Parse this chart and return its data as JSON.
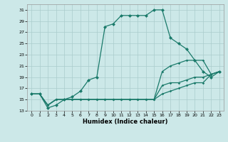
{
  "xlabel": "Humidex (Indice chaleur)",
  "bg_color": "#cce8e8",
  "grid_color": "#aacccc",
  "line_color": "#1a7a6a",
  "xlim": [
    0,
    23
  ],
  "ylim": [
    13,
    32
  ],
  "xticks": [
    0,
    1,
    2,
    3,
    4,
    5,
    6,
    7,
    8,
    9,
    10,
    11,
    12,
    13,
    14,
    15,
    16,
    17,
    18,
    19,
    20,
    21,
    22,
    23
  ],
  "yticks": [
    13,
    15,
    17,
    19,
    21,
    23,
    25,
    27,
    29,
    31
  ],
  "series": [
    {
      "x": [
        0,
        1,
        2,
        3,
        4,
        5,
        6,
        7,
        8,
        9,
        10,
        11,
        12,
        13,
        14,
        15,
        16,
        17,
        18,
        19,
        20,
        21,
        22,
        23
      ],
      "y": [
        16,
        16,
        13.5,
        14,
        15,
        15.5,
        16.5,
        18.5,
        19,
        28,
        28.5,
        30,
        30,
        30,
        30,
        31,
        31,
        26,
        25,
        24,
        22,
        20,
        19,
        20
      ],
      "ms": 2.5
    },
    {
      "x": [
        0,
        1,
        2,
        3,
        4,
        5,
        6,
        7,
        8,
        9,
        10,
        11,
        12,
        13,
        14,
        15,
        16,
        17,
        18,
        19,
        20,
        21,
        22,
        23
      ],
      "y": [
        16,
        16,
        14,
        15,
        15,
        15,
        15,
        15,
        15,
        15,
        15,
        15,
        15,
        15,
        15,
        15,
        20,
        21,
        21.5,
        22,
        22,
        22,
        19.5,
        20
      ],
      "ms": 1.8
    },
    {
      "x": [
        0,
        1,
        2,
        3,
        4,
        5,
        6,
        7,
        8,
        9,
        10,
        11,
        12,
        13,
        14,
        15,
        16,
        17,
        18,
        19,
        20,
        21,
        22,
        23
      ],
      "y": [
        16,
        16,
        14,
        15,
        15,
        15,
        15,
        15,
        15,
        15,
        15,
        15,
        15,
        15,
        15,
        15,
        17.5,
        18,
        18,
        18.5,
        19,
        19,
        19.5,
        20
      ],
      "ms": 1.8
    },
    {
      "x": [
        0,
        1,
        2,
        3,
        4,
        5,
        6,
        7,
        8,
        9,
        10,
        11,
        12,
        13,
        14,
        15,
        16,
        17,
        18,
        19,
        20,
        21,
        22,
        23
      ],
      "y": [
        16,
        16,
        14,
        15,
        15,
        15,
        15,
        15,
        15,
        15,
        15,
        15,
        15,
        15,
        15,
        15,
        16,
        16.5,
        17,
        17.5,
        18,
        18,
        19.5,
        20
      ],
      "ms": 1.8
    }
  ]
}
